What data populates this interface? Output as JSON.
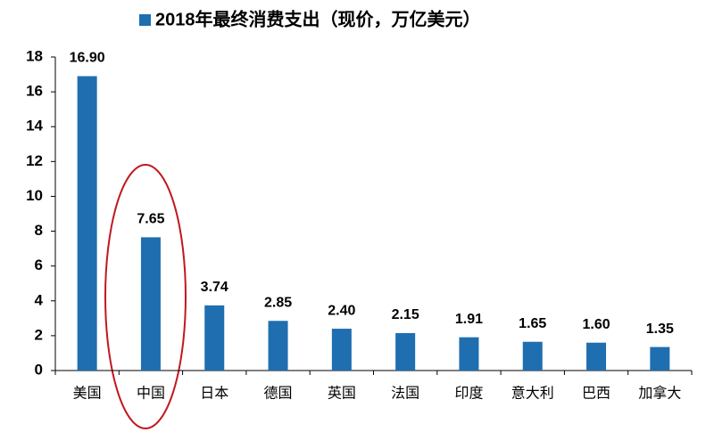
{
  "chart_data": {
    "type": "bar",
    "categories": [
      "美国",
      "中国",
      "日本",
      "德国",
      "英国",
      "法国",
      "印度",
      "意大利",
      "巴西",
      "加拿大"
    ],
    "series": [
      {
        "name": "2018年最终消费支出（现价，万亿美元）",
        "color": "#1f6eb0",
        "values": [
          16.9,
          7.65,
          3.74,
          2.85,
          2.4,
          2.15,
          1.91,
          1.65,
          1.6,
          1.35
        ],
        "value_labels": [
          "16.90",
          "7.65",
          "3.74",
          "2.85",
          "2.40",
          "2.15",
          "1.91",
          "1.65",
          "1.60",
          "1.35"
        ]
      }
    ],
    "ylim": [
      0,
      18
    ],
    "yticks": [
      0,
      2,
      4,
      6,
      8,
      10,
      12,
      14,
      16,
      18
    ],
    "grid": false,
    "legend": "top"
  }
}
